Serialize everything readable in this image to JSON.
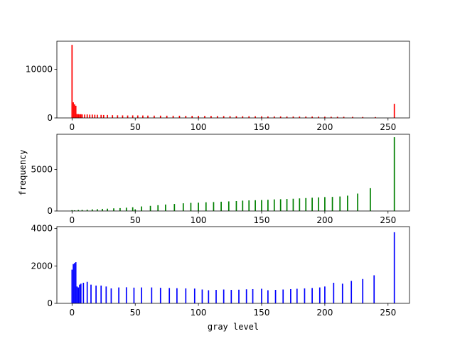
{
  "chart_data": [
    {
      "type": "bar",
      "color": "#ff0000",
      "xlim": [
        -12,
        267
      ],
      "ylim": [
        0,
        15750
      ],
      "xticks": [
        0,
        50,
        100,
        150,
        200,
        250
      ],
      "yticks": [
        0,
        10000
      ],
      "xlabel": "",
      "ylabel": "",
      "bins": [
        [
          0,
          15000
        ],
        [
          1,
          3200
        ],
        [
          2,
          2800
        ],
        [
          3,
          2500
        ],
        [
          4,
          800
        ],
        [
          5,
          780
        ],
        [
          6,
          750
        ],
        [
          7,
          760
        ],
        [
          8,
          720
        ],
        [
          10,
          700
        ],
        [
          12,
          720
        ],
        [
          14,
          680
        ],
        [
          16,
          690
        ],
        [
          18,
          650
        ],
        [
          20,
          640
        ],
        [
          23,
          620
        ],
        [
          25,
          600
        ],
        [
          28,
          600
        ],
        [
          32,
          560
        ],
        [
          36,
          540
        ],
        [
          40,
          520
        ],
        [
          44,
          500
        ],
        [
          48,
          520
        ],
        [
          52,
          510
        ],
        [
          56,
          500
        ],
        [
          60,
          480
        ],
        [
          65,
          470
        ],
        [
          70,
          470
        ],
        [
          75,
          460
        ],
        [
          80,
          450
        ],
        [
          85,
          450
        ],
        [
          90,
          440
        ],
        [
          95,
          430
        ],
        [
          100,
          430
        ],
        [
          105,
          420
        ],
        [
          110,
          420
        ],
        [
          115,
          400
        ],
        [
          120,
          390
        ],
        [
          125,
          380
        ],
        [
          130,
          370
        ],
        [
          135,
          360
        ],
        [
          140,
          350
        ],
        [
          145,
          350
        ],
        [
          150,
          340
        ],
        [
          155,
          320
        ],
        [
          160,
          320
        ],
        [
          165,
          310
        ],
        [
          170,
          300
        ],
        [
          175,
          300
        ],
        [
          180,
          300
        ],
        [
          185,
          290
        ],
        [
          190,
          290
        ],
        [
          195,
          280
        ],
        [
          200,
          260
        ],
        [
          205,
          250
        ],
        [
          210,
          250
        ],
        [
          215,
          240
        ],
        [
          222,
          230
        ],
        [
          230,
          200
        ],
        [
          240,
          180
        ],
        [
          255,
          2900
        ]
      ]
    },
    {
      "type": "bar",
      "color": "#008000",
      "xlim": [
        -12,
        267
      ],
      "ylim": [
        0,
        9250
      ],
      "xticks": [
        0,
        50,
        100,
        150,
        200,
        250
      ],
      "yticks": [
        0,
        5000
      ],
      "xlabel": "",
      "ylabel": "frequency",
      "bins": [
        [
          0,
          100
        ],
        [
          2,
          80
        ],
        [
          5,
          120
        ],
        [
          8,
          130
        ],
        [
          12,
          150
        ],
        [
          16,
          200
        ],
        [
          20,
          220
        ],
        [
          24,
          260
        ],
        [
          28,
          280
        ],
        [
          33,
          320
        ],
        [
          38,
          350
        ],
        [
          43,
          400
        ],
        [
          48,
          450
        ],
        [
          50,
          200
        ],
        [
          55,
          550
        ],
        [
          62,
          620
        ],
        [
          68,
          700
        ],
        [
          74,
          780
        ],
        [
          81,
          850
        ],
        [
          88,
          930
        ],
        [
          94,
          980
        ],
        [
          100,
          1000
        ],
        [
          106,
          1050
        ],
        [
          112,
          1080
        ],
        [
          118,
          1120
        ],
        [
          124,
          1160
        ],
        [
          130,
          1200
        ],
        [
          135,
          1250
        ],
        [
          140,
          1280
        ],
        [
          145,
          1300
        ],
        [
          150,
          1320
        ],
        [
          155,
          1350
        ],
        [
          160,
          1400
        ],
        [
          165,
          1420
        ],
        [
          170,
          1450
        ],
        [
          175,
          1480
        ],
        [
          180,
          1520
        ],
        [
          185,
          1560
        ],
        [
          190,
          1600
        ],
        [
          195,
          1640
        ],
        [
          200,
          1680
        ],
        [
          206,
          1700
        ],
        [
          212,
          1750
        ],
        [
          218,
          1850
        ],
        [
          226,
          2100
        ],
        [
          236,
          2750
        ],
        [
          255,
          8900
        ]
      ]
    },
    {
      "type": "bar",
      "color": "#0000ff",
      "xlim": [
        -12,
        267
      ],
      "ylim": [
        0,
        4100
      ],
      "xticks": [
        0,
        50,
        100,
        150,
        200,
        250
      ],
      "yticks": [
        0,
        2000,
        4000
      ],
      "xlabel": "gray level",
      "ylabel": "",
      "bins": [
        [
          0,
          1800
        ],
        [
          1,
          2100
        ],
        [
          2,
          2150
        ],
        [
          3,
          2200
        ],
        [
          4,
          900
        ],
        [
          5,
          850
        ],
        [
          6,
          1000
        ],
        [
          7,
          1050
        ],
        [
          9,
          1100
        ],
        [
          12,
          1150
        ],
        [
          15,
          1000
        ],
        [
          19,
          950
        ],
        [
          23,
          950
        ],
        [
          27,
          900
        ],
        [
          31,
          800
        ],
        [
          37,
          850
        ],
        [
          43,
          860
        ],
        [
          49,
          840
        ],
        [
          55,
          850
        ],
        [
          63,
          850
        ],
        [
          70,
          830
        ],
        [
          77,
          820
        ],
        [
          83,
          810
        ],
        [
          90,
          800
        ],
        [
          97,
          790
        ],
        [
          103,
          740
        ],
        [
          108,
          700
        ],
        [
          114,
          720
        ],
        [
          120,
          740
        ],
        [
          126,
          720
        ],
        [
          132,
          730
        ],
        [
          138,
          750
        ],
        [
          143,
          760
        ],
        [
          150,
          780
        ],
        [
          155,
          700
        ],
        [
          161,
          720
        ],
        [
          167,
          740
        ],
        [
          173,
          760
        ],
        [
          178,
          780
        ],
        [
          184,
          800
        ],
        [
          190,
          820
        ],
        [
          196,
          850
        ],
        [
          200,
          900
        ],
        [
          207,
          1100
        ],
        [
          214,
          1050
        ],
        [
          221,
          1200
        ],
        [
          230,
          1300
        ],
        [
          239,
          1500
        ],
        [
          255,
          3800
        ]
      ]
    }
  ]
}
